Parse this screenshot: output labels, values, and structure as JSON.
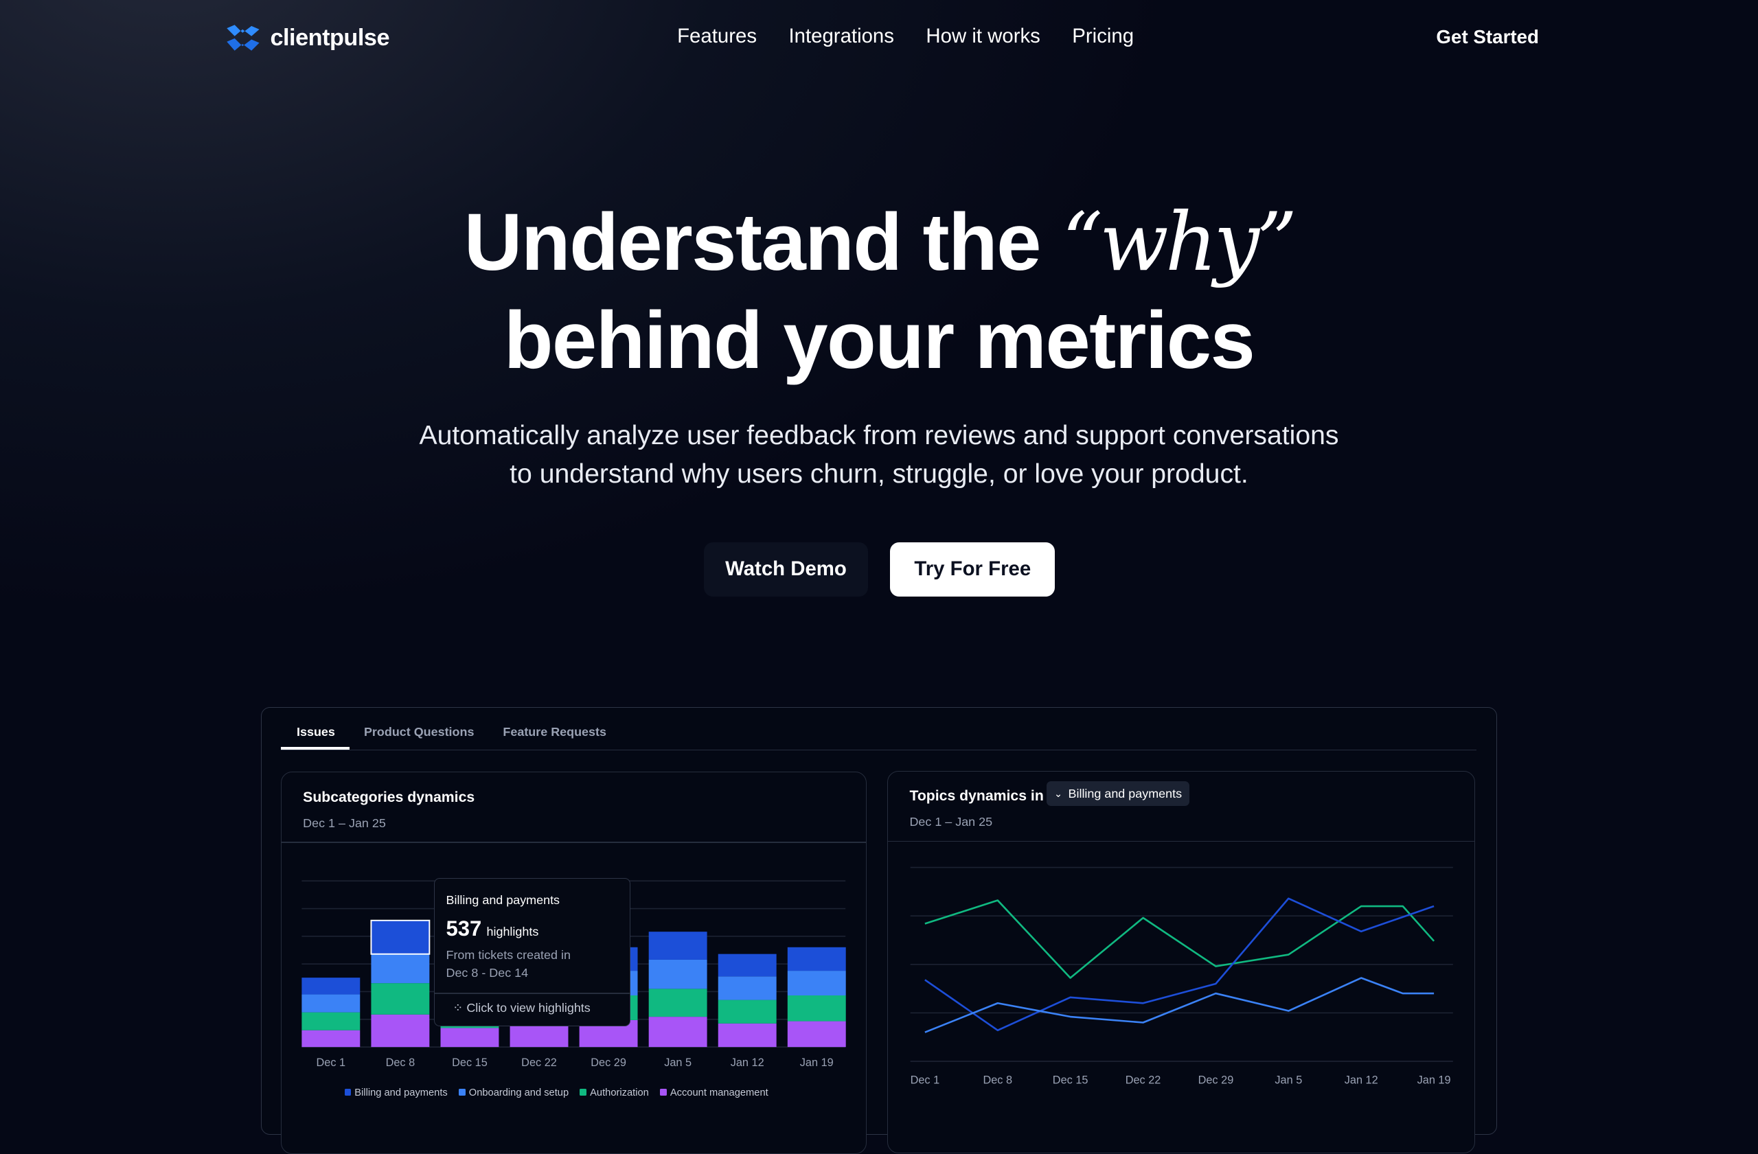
{
  "nav": {
    "brand": "clientpulse",
    "links": [
      "Features",
      "Integrations",
      "How it works",
      "Pricing"
    ],
    "cta": "Get Started"
  },
  "hero": {
    "title_part1": "Understand the ",
    "title_why": "“why”",
    "title_line2": "behind your metrics",
    "subtitle_line1": "Automatically analyze user feedback from reviews and support conversations",
    "subtitle_line2": "to understand why users churn, struggle, or love your product.",
    "watch_demo": "Watch Demo",
    "try_free": "Try For Free"
  },
  "dashboard": {
    "tabs": [
      "Issues",
      "Product Questions",
      "Feature Requests"
    ],
    "active_tab": "Issues",
    "left_card": {
      "title": "Subcategories dynamics",
      "range": "Dec 1 – Jan 25"
    },
    "right_card": {
      "title": "Topics dynamics in",
      "dropdown": "Billing and payments",
      "range": "Dec 1 – Jan 25"
    },
    "tooltip": {
      "title": "Billing and payments",
      "value": "537",
      "unit": "highlights",
      "line1": "From tickets created in",
      "line2": "Dec 8 - Dec 14",
      "action": "Click to view highlights"
    }
  },
  "colors": {
    "billing": "#1c4fd8",
    "onboarding": "#3b82f6",
    "authorization": "#10b981",
    "account": "#a855f7",
    "background": "#050816"
  },
  "chart_data": [
    {
      "type": "bar",
      "stacked": true,
      "categories": [
        "Dec 1",
        "Dec 8",
        "Dec 15",
        "Dec 22",
        "Dec 29",
        "Jan 5",
        "Jan 12",
        "Jan 19"
      ],
      "ylim": [
        0,
        2650
      ],
      "grid": true,
      "legend_placement": "bottom",
      "series": [
        {
          "name": "Account management",
          "color": "#a855f7",
          "values": [
            268,
            519,
            304,
            430,
            430,
            483,
            376,
            412
          ]
        },
        {
          "name": "Authorization",
          "color": "#10b981",
          "values": [
            286,
            501,
            304,
            394,
            394,
            447,
            376,
            412
          ]
        },
        {
          "name": "Onboarding and setup",
          "color": "#3b82f6",
          "values": [
            286,
            465,
            304,
            394,
            394,
            465,
            376,
            394
          ]
        },
        {
          "name": "Billing and payments",
          "color": "#1c4fd8",
          "values": [
            268,
            537,
            304,
            358,
            376,
            447,
            358,
            376
          ]
        }
      ]
    },
    {
      "type": "line",
      "x_ticks": [
        "Dec 1",
        "Dec 8",
        "Dec 15",
        "Dec 22",
        "Dec 29",
        "Jan 5",
        "Jan 12",
        "Jan 19"
      ],
      "x": [
        "Dec 1",
        "Dec 8",
        "Dec 15",
        "Dec 22",
        "Dec 29",
        "Jan 5",
        "Jan 12",
        "Jan 16",
        "Jan 19"
      ],
      "ylim": [
        0,
        100
      ],
      "grid": true,
      "series": [
        {
          "color": "#10b981",
          "values": [
            71,
            83,
            43,
            74,
            49,
            55,
            80,
            80,
            62
          ]
        },
        {
          "color": "#1d4ed8",
          "values": [
            42,
            16,
            33,
            30,
            40,
            84,
            67,
            null,
            80
          ]
        },
        {
          "color": "#3b82f6",
          "values": [
            15,
            30,
            23,
            20,
            35,
            26,
            43,
            35,
            35
          ]
        }
      ]
    }
  ]
}
